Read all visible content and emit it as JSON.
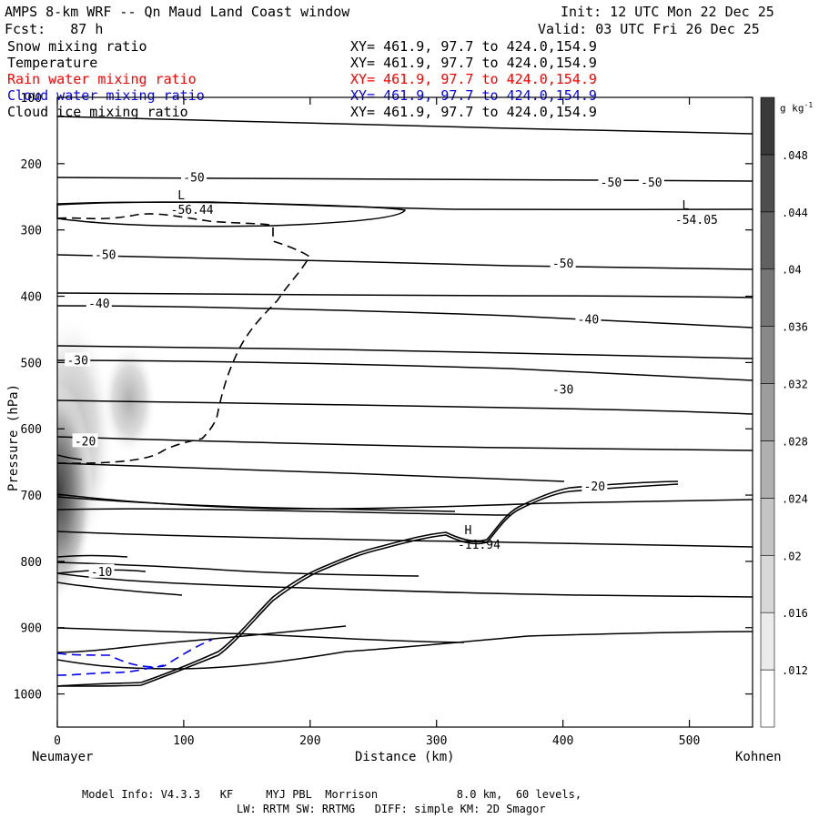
{
  "header": {
    "title": "AMPS 8-km WRF -- Qn Maud Land Coast window",
    "init": "Init: 12 UTC Mon 22 Dec 25",
    "fcst": "Fcst:   87 h",
    "valid": "Valid: 03 UTC Fri 26 Dec 25"
  },
  "fields": [
    {
      "name": "Snow mixing ratio",
      "xy": "XY= 461.9, 97.7 to 424.0,154.9",
      "color": "#000000"
    },
    {
      "name": "Temperature",
      "xy": "XY= 461.9, 97.7 to 424.0,154.9",
      "color": "#000000"
    },
    {
      "name": "Rain water mixing ratio",
      "xy": "XY= 461.9, 97.7 to 424.0,154.9",
      "color": "#ff0000"
    },
    {
      "name": "Cloud water mixing ratio",
      "xy": "XY= 461.9, 97.7 to 424.0,154.9",
      "color": "#0000ff"
    },
    {
      "name": "Cloud ice mixing ratio",
      "xy": "XY= 461.9, 97.7 to 424.0,154.9",
      "color": "#000000"
    }
  ],
  "footer": {
    "line1": "Model Info: V4.3.3   KF     MYJ PBL  Morrison            8.0 km,  60 levels,",
    "line2": "LW: RRTM SW: RRTMG   DIFF: simple KM: 2D Smagor"
  },
  "chart_data": {
    "type": "contour",
    "xlabel": "Distance (km)",
    "ylabel": "Pressure (hPa)",
    "xlim": [
      0,
      550
    ],
    "ylim": [
      1050,
      100
    ],
    "x_ticks": [
      0,
      100,
      200,
      300,
      400,
      500
    ],
    "y_ticks": [
      100,
      200,
      300,
      400,
      500,
      600,
      700,
      800,
      900,
      1000
    ],
    "left_endpoint": "Neumayer",
    "right_endpoint": "Kohnen",
    "colorbar": {
      "unit": "g kg",
      "unit_exp": "-1",
      "levels": [
        0.012,
        0.016,
        0.02,
        0.024,
        0.028,
        0.032,
        0.036,
        0.04,
        0.044,
        0.048
      ],
      "labels": [
        ".012",
        ".016",
        ".02",
        ".024",
        ".028",
        ".032",
        ".036",
        ".04",
        ".044",
        ".048"
      ]
    },
    "temperature_labels": [
      {
        "text": "-50",
        "x": 108,
        "p": 220
      },
      {
        "text": "-50",
        "x": 438,
        "p": 228
      },
      {
        "text": "-50",
        "x": 470,
        "p": 228
      },
      {
        "text": "-50",
        "x": 38,
        "p": 337
      },
      {
        "text": "-50",
        "x": 400,
        "p": 350
      },
      {
        "text": "-40",
        "x": 33,
        "p": 410
      },
      {
        "text": "-40",
        "x": 420,
        "p": 434
      },
      {
        "text": "-30",
        "x": 16,
        "p": 496
      },
      {
        "text": "-30",
        "x": 400,
        "p": 540
      },
      {
        "text": "-20",
        "x": 22,
        "p": 618
      },
      {
        "text": "-20",
        "x": 425,
        "p": 686
      },
      {
        "text": "-10",
        "x": 35,
        "p": 815
      }
    ],
    "extrema": [
      {
        "type": "L",
        "value": "-56.44",
        "x": 98,
        "p": 265
      },
      {
        "type": "L",
        "value": "-54.05",
        "x": 497,
        "p": 280
      },
      {
        "type": "H",
        "value": "-11.94",
        "x": 325,
        "p": 770
      }
    ]
  }
}
